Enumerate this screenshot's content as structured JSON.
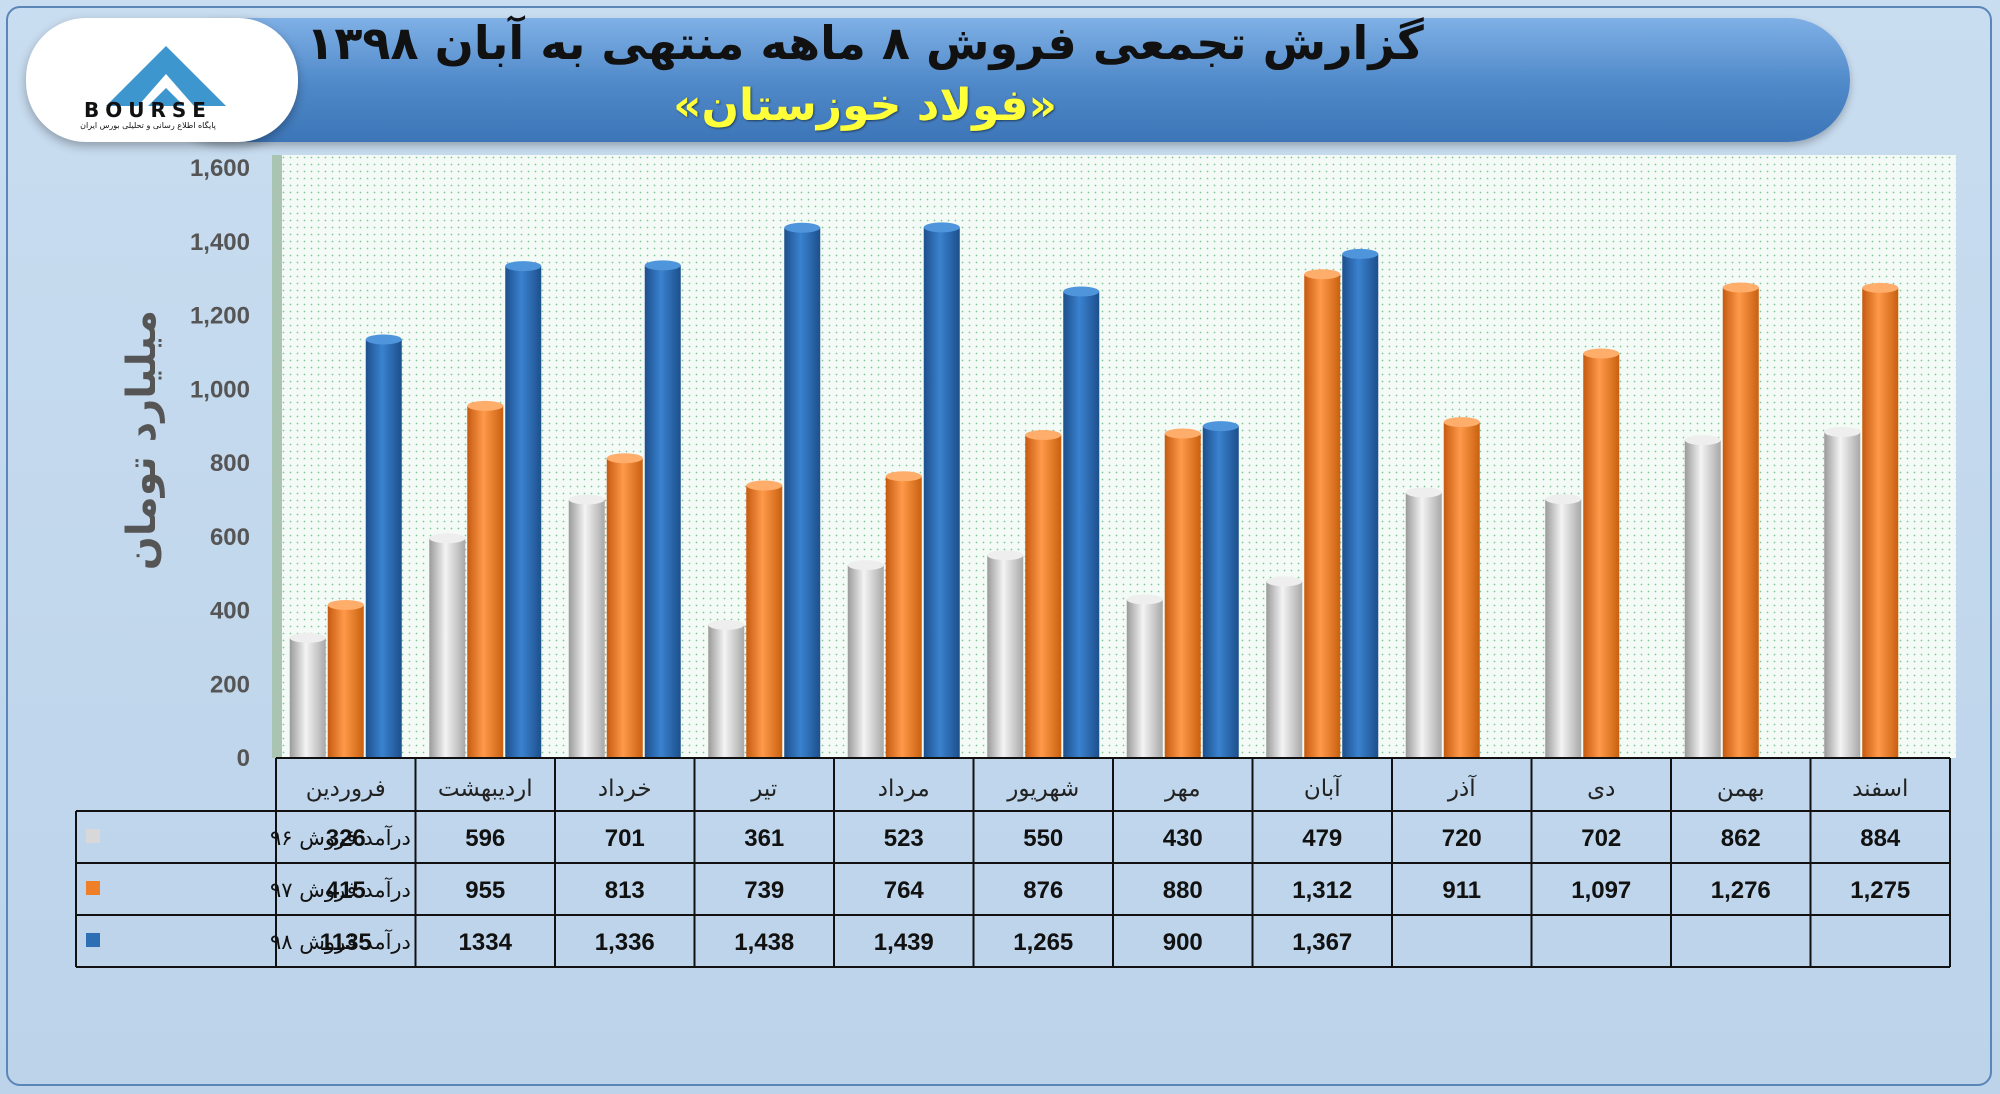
{
  "title": "گزارش تجمعی فروش ۸ ماهه منتهی به آبان ۱۳۹۸",
  "subtitle": "«فولاد خوزستان»",
  "logo": {
    "text": "BOURSE",
    "small": "پایگاه اطلاع رسانی و تحلیلی بورس ایران"
  },
  "colors": {
    "s96": "#d8d8d8",
    "s97": "#f07f2a",
    "s98": "#2e6eb4"
  },
  "chart_data": {
    "type": "bar",
    "ylabel": "میلیارد تومان",
    "ylim": [
      0,
      1600
    ],
    "yticks": [
      "0",
      "200",
      "400",
      "600",
      "800",
      "1,000",
      "1,200",
      "1,400",
      "1,600"
    ],
    "categories": [
      "فروردین",
      "اردیبهشت",
      "خرداد",
      "تیر",
      "مرداد",
      "شهریور",
      "مهر",
      "آبان",
      "آذر",
      "دی",
      "بهمن",
      "اسفند"
    ],
    "series": [
      {
        "name": "درآمد فروش ۹۶",
        "values": [
          326,
          596,
          701,
          361,
          523,
          550,
          430,
          479,
          720,
          702,
          862,
          884
        ],
        "labels": [
          "326",
          "596",
          "701",
          "361",
          "523",
          "550",
          "430",
          "479",
          "720",
          "702",
          "862",
          "884"
        ]
      },
      {
        "name": "درآمد فروش ۹۷",
        "values": [
          415,
          955,
          813,
          739,
          764,
          876,
          880,
          1312,
          911,
          1097,
          1276,
          1275
        ],
        "labels": [
          "415",
          "955",
          "813",
          "739",
          "764",
          "876",
          "880",
          "1,312",
          "911",
          "1,097",
          "1,276",
          "1,275"
        ]
      },
      {
        "name": "درآمد فروش ۹۸",
        "values": [
          1135,
          1334,
          1336,
          1438,
          1439,
          1265,
          900,
          1367,
          null,
          null,
          null,
          null
        ],
        "labels": [
          "1135",
          "1334",
          "1,336",
          "1,438",
          "1,439",
          "1,265",
          "900",
          "1,367",
          "",
          "",
          "",
          ""
        ]
      }
    ],
    "grid": false,
    "legend": "table"
  }
}
